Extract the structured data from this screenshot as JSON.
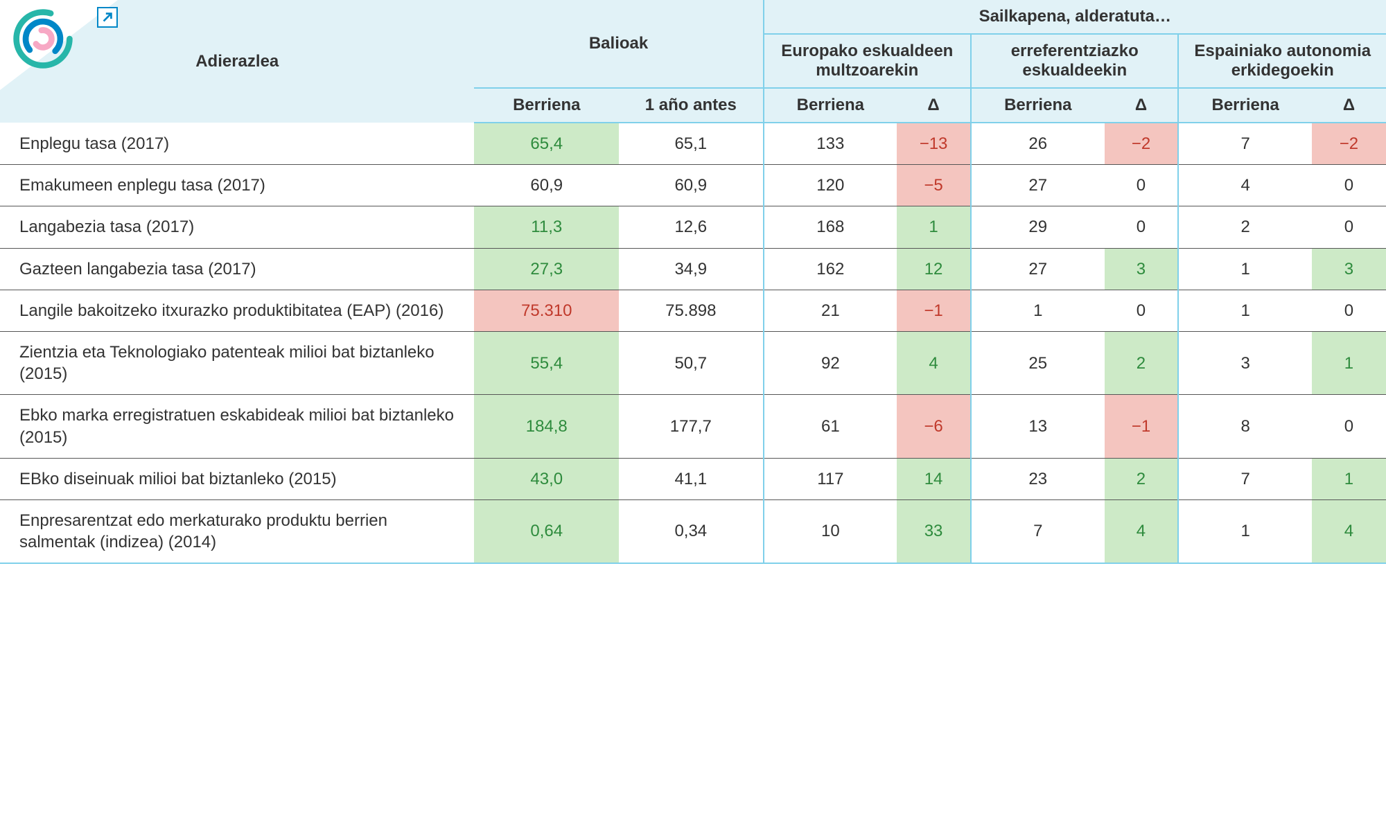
{
  "colors": {
    "header_bg": "#e1f2f7",
    "rule_blue": "#7fd0ea",
    "cell_green": "#cdeac7",
    "cell_red": "#f4c5bf",
    "text_green": "#2e8b3d",
    "text_red": "#c0392b",
    "logo_outer": "#27b6a9",
    "logo_mid": "#0087c7",
    "logo_inner": "#f7a8c4"
  },
  "headers": {
    "indicator": "Adierazlea",
    "values": "Balioak",
    "ranking_title": "Sailkapena, alderatuta…",
    "groups": [
      "Europako eskualdeen multzoarekin",
      "erreferentziazko eskualdeekin",
      "Espainiako autonomia erkidegoekin"
    ],
    "latest": "Berriena",
    "year_ago": "1 año antes",
    "delta": "Δ"
  },
  "rows": [
    {
      "label": "Enplegu tasa (2017)",
      "latest": {
        "v": "65,4",
        "hl": "green"
      },
      "prev": {
        "v": "65,1"
      },
      "g1b": {
        "v": "133"
      },
      "g1d": {
        "v": "−13",
        "hl": "red"
      },
      "g2b": {
        "v": "26"
      },
      "g2d": {
        "v": "−2",
        "hl": "red"
      },
      "g3b": {
        "v": "7"
      },
      "g3d": {
        "v": "−2",
        "hl": "red"
      }
    },
    {
      "label": "Emakumeen enplegu tasa (2017)",
      "latest": {
        "v": "60,9"
      },
      "prev": {
        "v": "60,9"
      },
      "g1b": {
        "v": "120"
      },
      "g1d": {
        "v": "−5",
        "hl": "red"
      },
      "g2b": {
        "v": "27"
      },
      "g2d": {
        "v": "0"
      },
      "g3b": {
        "v": "4"
      },
      "g3d": {
        "v": "0"
      }
    },
    {
      "label": "Langabezia tasa (2017)",
      "latest": {
        "v": "11,3",
        "hl": "green"
      },
      "prev": {
        "v": "12,6"
      },
      "g1b": {
        "v": "168"
      },
      "g1d": {
        "v": "1",
        "hl": "green"
      },
      "g2b": {
        "v": "29"
      },
      "g2d": {
        "v": "0"
      },
      "g3b": {
        "v": "2"
      },
      "g3d": {
        "v": "0"
      }
    },
    {
      "label": "Gazteen langabezia tasa (2017)",
      "latest": {
        "v": "27,3",
        "hl": "green"
      },
      "prev": {
        "v": "34,9"
      },
      "g1b": {
        "v": "162"
      },
      "g1d": {
        "v": "12",
        "hl": "green"
      },
      "g2b": {
        "v": "27"
      },
      "g2d": {
        "v": "3",
        "hl": "green"
      },
      "g3b": {
        "v": "1"
      },
      "g3d": {
        "v": "3",
        "hl": "green"
      }
    },
    {
      "label": "Langile bakoitzeko itxurazko produktibitatea (EAP) (2016)",
      "latest": {
        "v": "75.310",
        "hl": "red"
      },
      "prev": {
        "v": "75.898"
      },
      "g1b": {
        "v": "21"
      },
      "g1d": {
        "v": "−1",
        "hl": "red"
      },
      "g2b": {
        "v": "1"
      },
      "g2d": {
        "v": "0"
      },
      "g3b": {
        "v": "1"
      },
      "g3d": {
        "v": "0"
      }
    },
    {
      "label": "Zientzia eta Teknologiako patenteak milioi bat biztanleko (2015)",
      "latest": {
        "v": "55,4",
        "hl": "green"
      },
      "prev": {
        "v": "50,7"
      },
      "g1b": {
        "v": "92"
      },
      "g1d": {
        "v": "4",
        "hl": "green"
      },
      "g2b": {
        "v": "25"
      },
      "g2d": {
        "v": "2",
        "hl": "green"
      },
      "g3b": {
        "v": "3"
      },
      "g3d": {
        "v": "1",
        "hl": "green"
      }
    },
    {
      "label": "Ebko marka erregistratuen eskabideak milioi bat biztanleko (2015)",
      "latest": {
        "v": "184,8",
        "hl": "green"
      },
      "prev": {
        "v": "177,7"
      },
      "g1b": {
        "v": "61"
      },
      "g1d": {
        "v": "−6",
        "hl": "red"
      },
      "g2b": {
        "v": "13"
      },
      "g2d": {
        "v": "−1",
        "hl": "red"
      },
      "g3b": {
        "v": "8"
      },
      "g3d": {
        "v": "0"
      }
    },
    {
      "label": "EBko diseinuak milioi bat biztanleko (2015)",
      "latest": {
        "v": "43,0",
        "hl": "green"
      },
      "prev": {
        "v": "41,1"
      },
      "g1b": {
        "v": "117"
      },
      "g1d": {
        "v": "14",
        "hl": "green"
      },
      "g2b": {
        "v": "23"
      },
      "g2d": {
        "v": "2",
        "hl": "green"
      },
      "g3b": {
        "v": "7"
      },
      "g3d": {
        "v": "1",
        "hl": "green"
      }
    },
    {
      "label": "Enpresarentzat edo merkaturako produktu berrien salmentak (indizea) (2014)",
      "latest": {
        "v": "0,64",
        "hl": "green"
      },
      "prev": {
        "v": "0,34"
      },
      "g1b": {
        "v": "10"
      },
      "g1d": {
        "v": "33",
        "hl": "green"
      },
      "g2b": {
        "v": "7"
      },
      "g2d": {
        "v": "4",
        "hl": "green"
      },
      "g3b": {
        "v": "1"
      },
      "g3d": {
        "v": "4",
        "hl": "green"
      }
    }
  ]
}
